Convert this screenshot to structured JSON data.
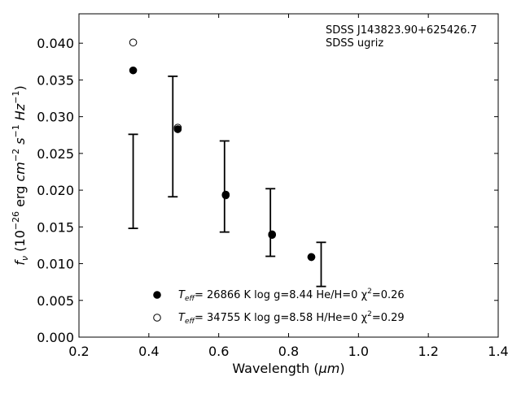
{
  "chart_data": {
    "type": "scatter",
    "xlabel": "Wavelength (",
    "xlabel_unit": "μm",
    "xlabel_close": ")",
    "ylabel": "f",
    "ylabel_sub": "ν",
    "ylabel_rest": " (10",
    "ylabel_exp1": "−26",
    "ylabel_erg": " erg ",
    "ylabel_cm": "cm",
    "ylabel_exp2": "−2",
    "ylabel_s": " s",
    "ylabel_exp3": "−1",
    "ylabel_hz": " Hz",
    "ylabel_exp4": "−1",
    "ylabel_close": ")",
    "xlim": [
      0.2,
      1.4
    ],
    "ylim": [
      0.0,
      0.044
    ],
    "xticks": [
      0.2,
      0.4,
      0.6,
      0.8,
      1.0,
      1.2,
      1.4
    ],
    "xtick_labels": [
      "0.2",
      "0.4",
      "0.6",
      "0.8",
      "1.0",
      "1.2",
      "1.4"
    ],
    "yticks": [
      0.0,
      0.005,
      0.01,
      0.015,
      0.02,
      0.025,
      0.03,
      0.035,
      0.04
    ],
    "ytick_labels": [
      "0.000",
      "0.005",
      "0.010",
      "0.015",
      "0.020",
      "0.025",
      "0.030",
      "0.035",
      "0.040"
    ],
    "grid": false,
    "annotation": [
      "SDSS J143823.90+625426.7",
      "SDSS ugriz"
    ],
    "observed": {
      "x": [
        0.3551,
        0.4686,
        0.6166,
        0.748,
        0.8932
      ],
      "y": [
        0.0212,
        0.0273,
        0.0205,
        0.0156,
        0.0099
      ],
      "yerr_low": [
        0.0064,
        0.0082,
        0.0062,
        0.0046,
        0.003
      ],
      "yerr_high": [
        0.0064,
        0.0082,
        0.0062,
        0.0046,
        0.003
      ]
    },
    "series": [
      {
        "marker": "filled-circle",
        "x": [
          0.3551,
          0.4828,
          0.6201,
          0.7527,
          0.8652
        ],
        "y": [
          0.0363,
          0.0283,
          0.0194,
          0.014,
          0.0109
        ]
      },
      {
        "marker": "open-circle",
        "x": [
          0.3551,
          0.4828,
          0.6201,
          0.7527,
          0.8652
        ],
        "y": [
          0.0401,
          0.0285,
          0.0193,
          0.0139,
          0.0109
        ]
      }
    ],
    "legend": {
      "placement": "lower-center",
      "entries": [
        {
          "teff_label": "T",
          "teff_sub": "eff",
          "text": "= 26866 K  log g=8.44  He/H=0  χ",
          "chi_sup": "2",
          "chi_text": "=0.26"
        },
        {
          "teff_label": "T",
          "teff_sub": "eff",
          "text": "= 34755 K  log g=8.58  H/He=0  χ",
          "chi_sup": "2",
          "chi_text": "=0.29"
        }
      ]
    }
  }
}
